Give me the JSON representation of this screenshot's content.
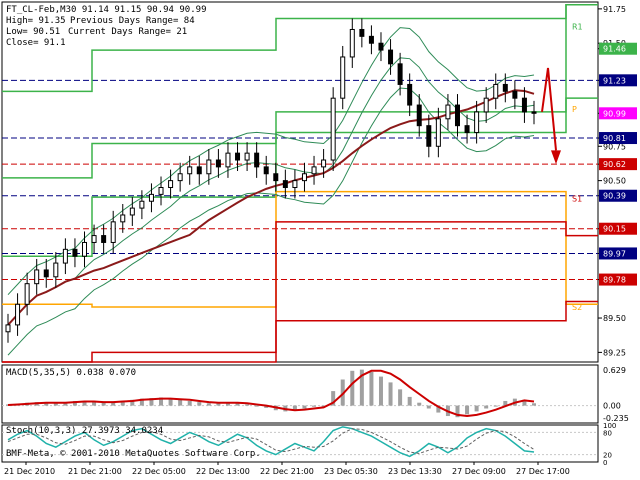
{
  "header": {
    "symbol_line": "FT_CL-Feb,M30  91.14 91.15 90.94 90.99",
    "high": "High= 91.35",
    "prev_range": "Previous Days Range= 84",
    "low": "Low= 90.51",
    "curr_range": "Current Days Range= 21",
    "close": "Close= 91.1"
  },
  "colors": {
    "background": "#ffffff",
    "grid": "#c8c8c8",
    "candle": "#000000",
    "band": "#2e8b57",
    "ma": "#8b1a1a",
    "lime": "#3cb34a",
    "orange": "#ffa500",
    "red": "#cc0000",
    "navy": "#000080",
    "magenta": "#ff00ff",
    "macd_hist": "#a0a0a0",
    "macd_signal": "#cc0000",
    "stoch_main": "#20b2aa",
    "stoch_signal": "#606060"
  },
  "price_labels": [
    {
      "text": "91.75",
      "price": 91.75,
      "bg": "#ffffff",
      "fg": "#000000"
    },
    {
      "text": "91.50",
      "price": 91.5,
      "bg": "#ffffff",
      "fg": "#000000"
    },
    {
      "text": "91.46",
      "price": 91.46,
      "bg": "#3cb34a",
      "fg": "#ffffff"
    },
    {
      "text": "91.23",
      "price": 91.23,
      "bg": "#000080",
      "fg": "#ffffff"
    },
    {
      "text": "90.99",
      "price": 90.99,
      "bg": "#ff00ff",
      "fg": "#ffffff"
    },
    {
      "text": "90.75",
      "price": 90.75,
      "bg": "#ffffff",
      "fg": "#000000"
    },
    {
      "text": "90.81",
      "price": 90.81,
      "bg": "#000080",
      "fg": "#ffffff"
    },
    {
      "text": "90.62",
      "price": 90.62,
      "bg": "#cc0000",
      "fg": "#ffffff"
    },
    {
      "text": "90.50",
      "price": 90.5,
      "bg": "#ffffff",
      "fg": "#000000"
    },
    {
      "text": "90.39",
      "price": 90.39,
      "bg": "#000080",
      "fg": "#ffffff"
    },
    {
      "text": "90.15",
      "price": 90.15,
      "bg": "#cc0000",
      "fg": "#ffffff"
    },
    {
      "text": "89.97",
      "price": 89.97,
      "bg": "#000080",
      "fg": "#ffffff"
    },
    {
      "text": "89.78",
      "price": 89.78,
      "bg": "#cc0000",
      "fg": "#ffffff"
    },
    {
      "text": "89.50",
      "price": 89.5,
      "bg": "#ffffff",
      "fg": "#000000"
    },
    {
      "text": "89.25",
      "price": 89.25,
      "bg": "#ffffff",
      "fg": "#000000"
    }
  ],
  "pivot_tags": [
    {
      "text": "R1",
      "price": 91.62,
      "color": "#3cb34a"
    },
    {
      "text": "P",
      "price": 91.02,
      "color": "#ffa500"
    },
    {
      "text": "S1",
      "price": 90.37,
      "color": "#cc0000"
    },
    {
      "text": "S2",
      "price": 89.58,
      "color": "#ffa500"
    }
  ],
  "chart_data": {
    "type": "candlestick",
    "price_ylim": [
      89.18,
      91.8
    ],
    "price_ticks": [
      89.25,
      89.5,
      89.75,
      90.0,
      90.25,
      90.5,
      90.75,
      91.0,
      91.25,
      91.5,
      91.75
    ],
    "closes": [
      89.45,
      89.6,
      89.75,
      89.85,
      89.8,
      89.9,
      90.0,
      89.95,
      90.05,
      90.1,
      90.05,
      90.2,
      90.25,
      90.3,
      90.35,
      90.4,
      90.45,
      90.5,
      90.55,
      90.6,
      90.55,
      90.65,
      90.6,
      90.7,
      90.65,
      90.7,
      90.6,
      90.55,
      90.5,
      90.45,
      90.5,
      90.55,
      90.6,
      90.65,
      91.1,
      91.4,
      91.6,
      91.55,
      91.5,
      91.45,
      91.35,
      91.2,
      91.05,
      90.9,
      90.75,
      90.95,
      91.05,
      90.9,
      90.85,
      91.0,
      91.1,
      91.2,
      91.15,
      91.1,
      91.0,
      90.99
    ],
    "x_labels": [
      "21 Dec 2010",
      "21 Dec 21:00",
      "22 Dec 05:00",
      "22 Dec 13:00",
      "22 Dec 21:00",
      "23 Dec 05:30",
      "23 Dec 13:30",
      "27 Dec 09:00",
      "27 Dec 17:00"
    ],
    "macd": {
      "label": "MACD(5,35,5) 0.038 0.070",
      "ticks": [
        "0.629",
        "0.00",
        "-0.235"
      ],
      "ylim": [
        -0.3,
        0.7
      ],
      "hist": [
        0.02,
        0.03,
        0.05,
        0.06,
        0.05,
        0.04,
        0.06,
        0.08,
        0.07,
        0.06,
        0.05,
        0.06,
        0.08,
        0.1,
        0.12,
        0.13,
        0.14,
        0.12,
        0.1,
        0.08,
        0.06,
        0.04,
        0.05,
        0.06,
        0.04,
        0.02,
        0.0,
        -0.04,
        -0.08,
        -0.1,
        -0.07,
        -0.05,
        -0.02,
        0.0,
        0.25,
        0.45,
        0.6,
        0.62,
        0.58,
        0.5,
        0.4,
        0.28,
        0.15,
        0.05,
        -0.05,
        -0.12,
        -0.18,
        -0.2,
        -0.15,
        -0.1,
        -0.05,
        0.0,
        0.08,
        0.12,
        0.1,
        0.04
      ],
      "signal": [
        0.01,
        0.02,
        0.03,
        0.04,
        0.05,
        0.05,
        0.05,
        0.06,
        0.07,
        0.07,
        0.06,
        0.06,
        0.07,
        0.08,
        0.1,
        0.11,
        0.12,
        0.12,
        0.11,
        0.1,
        0.08,
        0.06,
        0.05,
        0.05,
        0.05,
        0.04,
        0.02,
        0.0,
        -0.03,
        -0.06,
        -0.08,
        -0.07,
        -0.05,
        -0.03,
        0.05,
        0.2,
        0.38,
        0.52,
        0.6,
        0.6,
        0.55,
        0.45,
        0.32,
        0.2,
        0.08,
        -0.02,
        -0.1,
        -0.16,
        -0.18,
        -0.16,
        -0.12,
        -0.07,
        -0.01,
        0.05,
        0.09,
        0.07
      ]
    },
    "stoch": {
      "label": "Stoch(10,3,3) 27.3973 34.0234",
      "sublabel": "BMF-Meta, © 2001-2010 MetaQuotes Software Corp.",
      "ticks": [
        "100",
        "80",
        "20",
        "0"
      ],
      "ylim": [
        0,
        100
      ],
      "main": [
        60,
        75,
        85,
        70,
        50,
        40,
        55,
        70,
        80,
        60,
        45,
        55,
        70,
        85,
        90,
        75,
        60,
        50,
        65,
        80,
        70,
        55,
        45,
        60,
        75,
        65,
        45,
        30,
        20,
        35,
        50,
        40,
        30,
        55,
        85,
        95,
        90,
        80,
        70,
        55,
        40,
        25,
        15,
        30,
        50,
        40,
        25,
        40,
        65,
        80,
        90,
        85,
        70,
        50,
        30,
        27
      ],
      "signal": [
        55,
        65,
        75,
        75,
        65,
        52,
        48,
        58,
        70,
        70,
        60,
        52,
        58,
        70,
        80,
        82,
        75,
        62,
        58,
        65,
        72,
        68,
        57,
        53,
        60,
        67,
        62,
        47,
        32,
        28,
        35,
        42,
        40,
        42,
        57,
        78,
        90,
        88,
        80,
        68,
        55,
        40,
        27,
        23,
        32,
        40,
        38,
        35,
        43,
        62,
        78,
        85,
        82,
        68,
        50,
        34
      ]
    }
  }
}
